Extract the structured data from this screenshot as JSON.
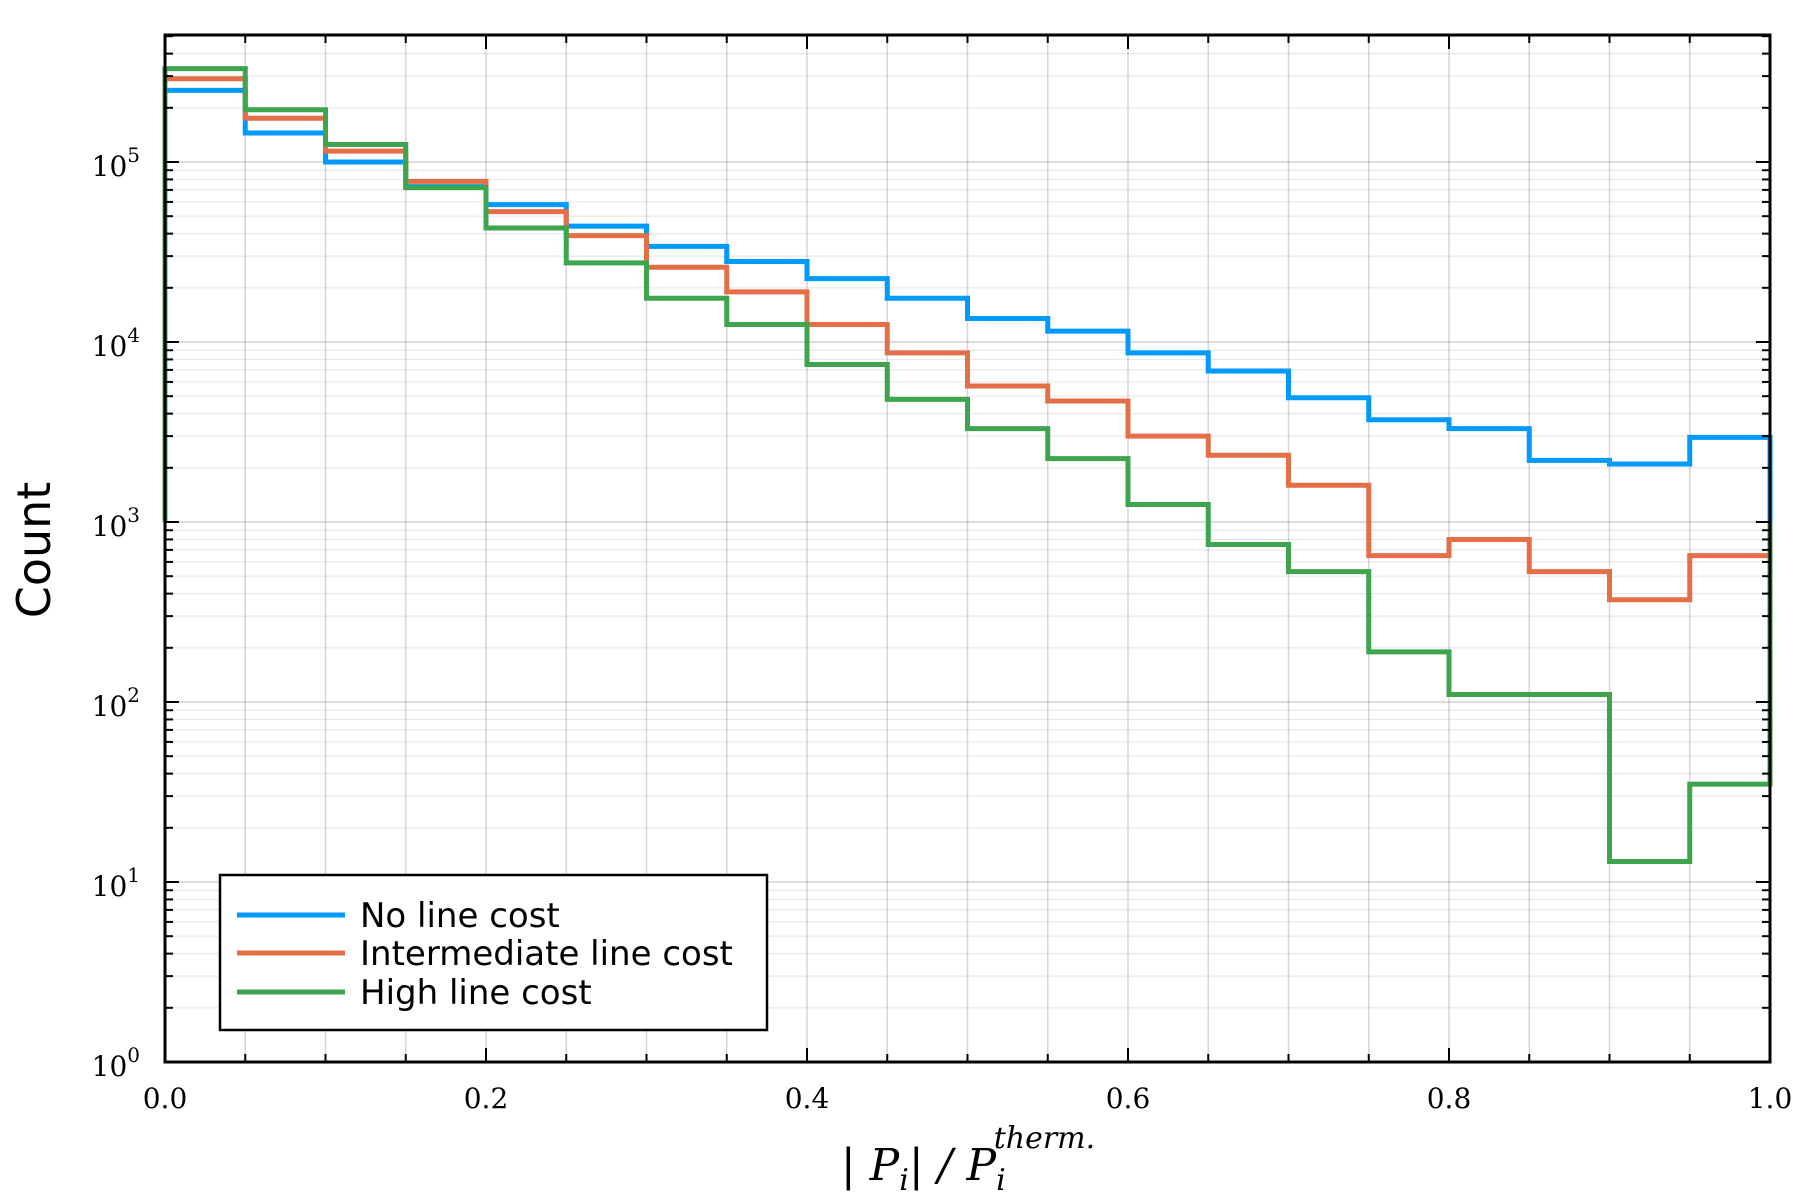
{
  "chart_data": {
    "type": "histogram",
    "xlabel": {
      "prefix": "| P",
      "prefix_sub": "i",
      "middle": "| / P",
      "sup": "therm.",
      "sub": "i"
    },
    "ylabel": "Count",
    "xlim": [
      0.0,
      1.0
    ],
    "ylim": [
      1,
      500000
    ],
    "y_scale": "log",
    "x_ticks": [
      "0.0",
      "0.2",
      "0.4",
      "0.6",
      "0.8",
      "1.0"
    ],
    "y_ticks": [
      {
        "base": "10",
        "exp": "0"
      },
      {
        "base": "10",
        "exp": "1"
      },
      {
        "base": "10",
        "exp": "2"
      },
      {
        "base": "10",
        "exp": "3"
      },
      {
        "base": "10",
        "exp": "4"
      },
      {
        "base": "10",
        "exp": "5"
      }
    ],
    "grid": true,
    "legend_position": "bottom-left",
    "bin_edges": [
      0.0,
      0.05,
      0.1,
      0.15,
      0.2,
      0.25,
      0.3,
      0.35,
      0.4,
      0.45,
      0.5,
      0.55,
      0.6,
      0.65,
      0.7,
      0.75,
      0.8,
      0.85,
      0.9,
      0.95,
      1.0
    ],
    "series": [
      {
        "name": "No line cost",
        "color": "#009AFA",
        "values": [
          250000,
          145000,
          100000,
          73000,
          58000,
          44000,
          34000,
          28000,
          22500,
          17500,
          13500,
          11500,
          8700,
          6900,
          4900,
          3700,
          3300,
          2200,
          2100,
          2950
        ]
      },
      {
        "name": "Intermediate line cost",
        "color": "#E36F47",
        "values": [
          290000,
          175000,
          115000,
          78000,
          53000,
          39000,
          26000,
          19000,
          12500,
          8700,
          5700,
          4700,
          3000,
          2350,
          1600,
          650,
          800,
          530,
          370,
          650
        ]
      },
      {
        "name": "High line cost",
        "color": "#3EA44E",
        "values": [
          330000,
          195000,
          125000,
          72000,
          43000,
          27500,
          17500,
          12500,
          7500,
          4800,
          3300,
          2250,
          1250,
          750,
          530,
          190,
          110,
          110,
          13,
          35
        ]
      }
    ]
  }
}
